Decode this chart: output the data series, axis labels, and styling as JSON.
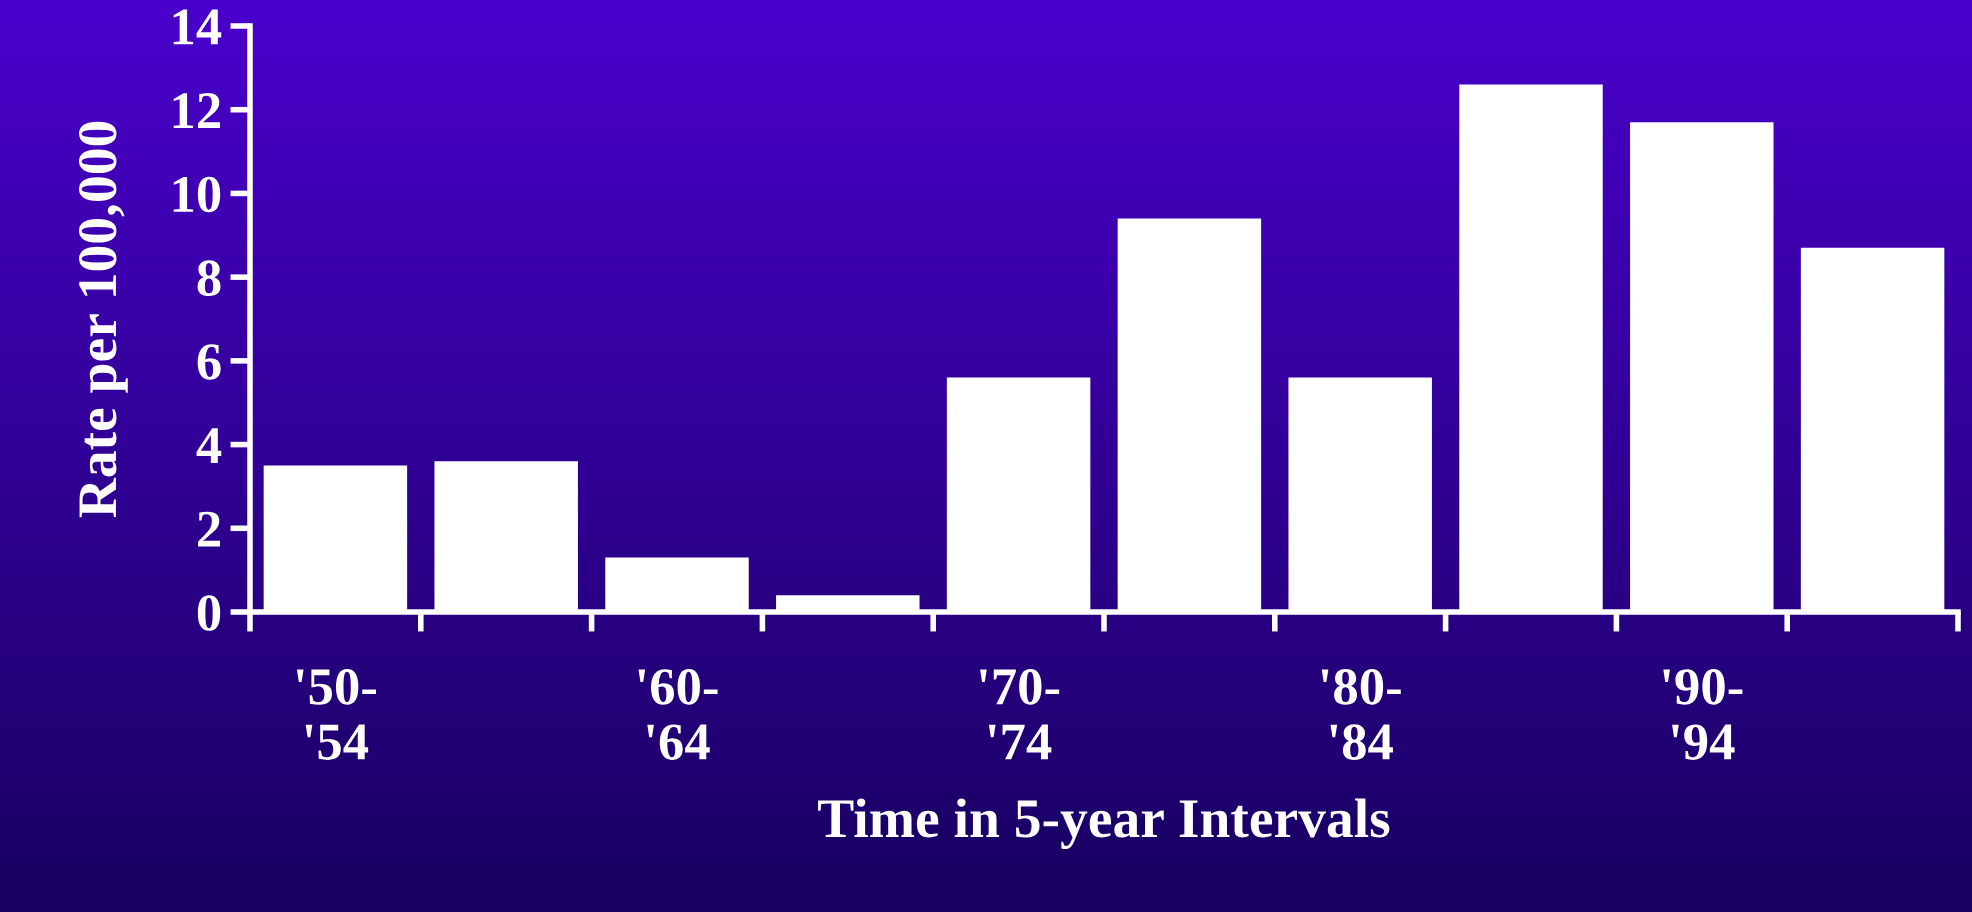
{
  "chart_data": {
    "type": "bar",
    "xlabel": "Time in 5-year Intervals",
    "ylabel": "Rate per 100,000",
    "categories": [
      "'50-\n'54",
      null,
      "'60-\n'64",
      null,
      "'70-\n'74",
      null,
      "'80-\n'84",
      null,
      "'90-\n'94",
      null
    ],
    "values": [
      3.5,
      3.6,
      1.3,
      0.4,
      5.6,
      9.4,
      5.6,
      12.6,
      11.7,
      8.7
    ],
    "color": "#ffffff",
    "ylim": [
      0,
      14
    ],
    "yticks": [
      0,
      2,
      4,
      6,
      8,
      10,
      12,
      14
    ],
    "grid": false,
    "legend": false
  }
}
